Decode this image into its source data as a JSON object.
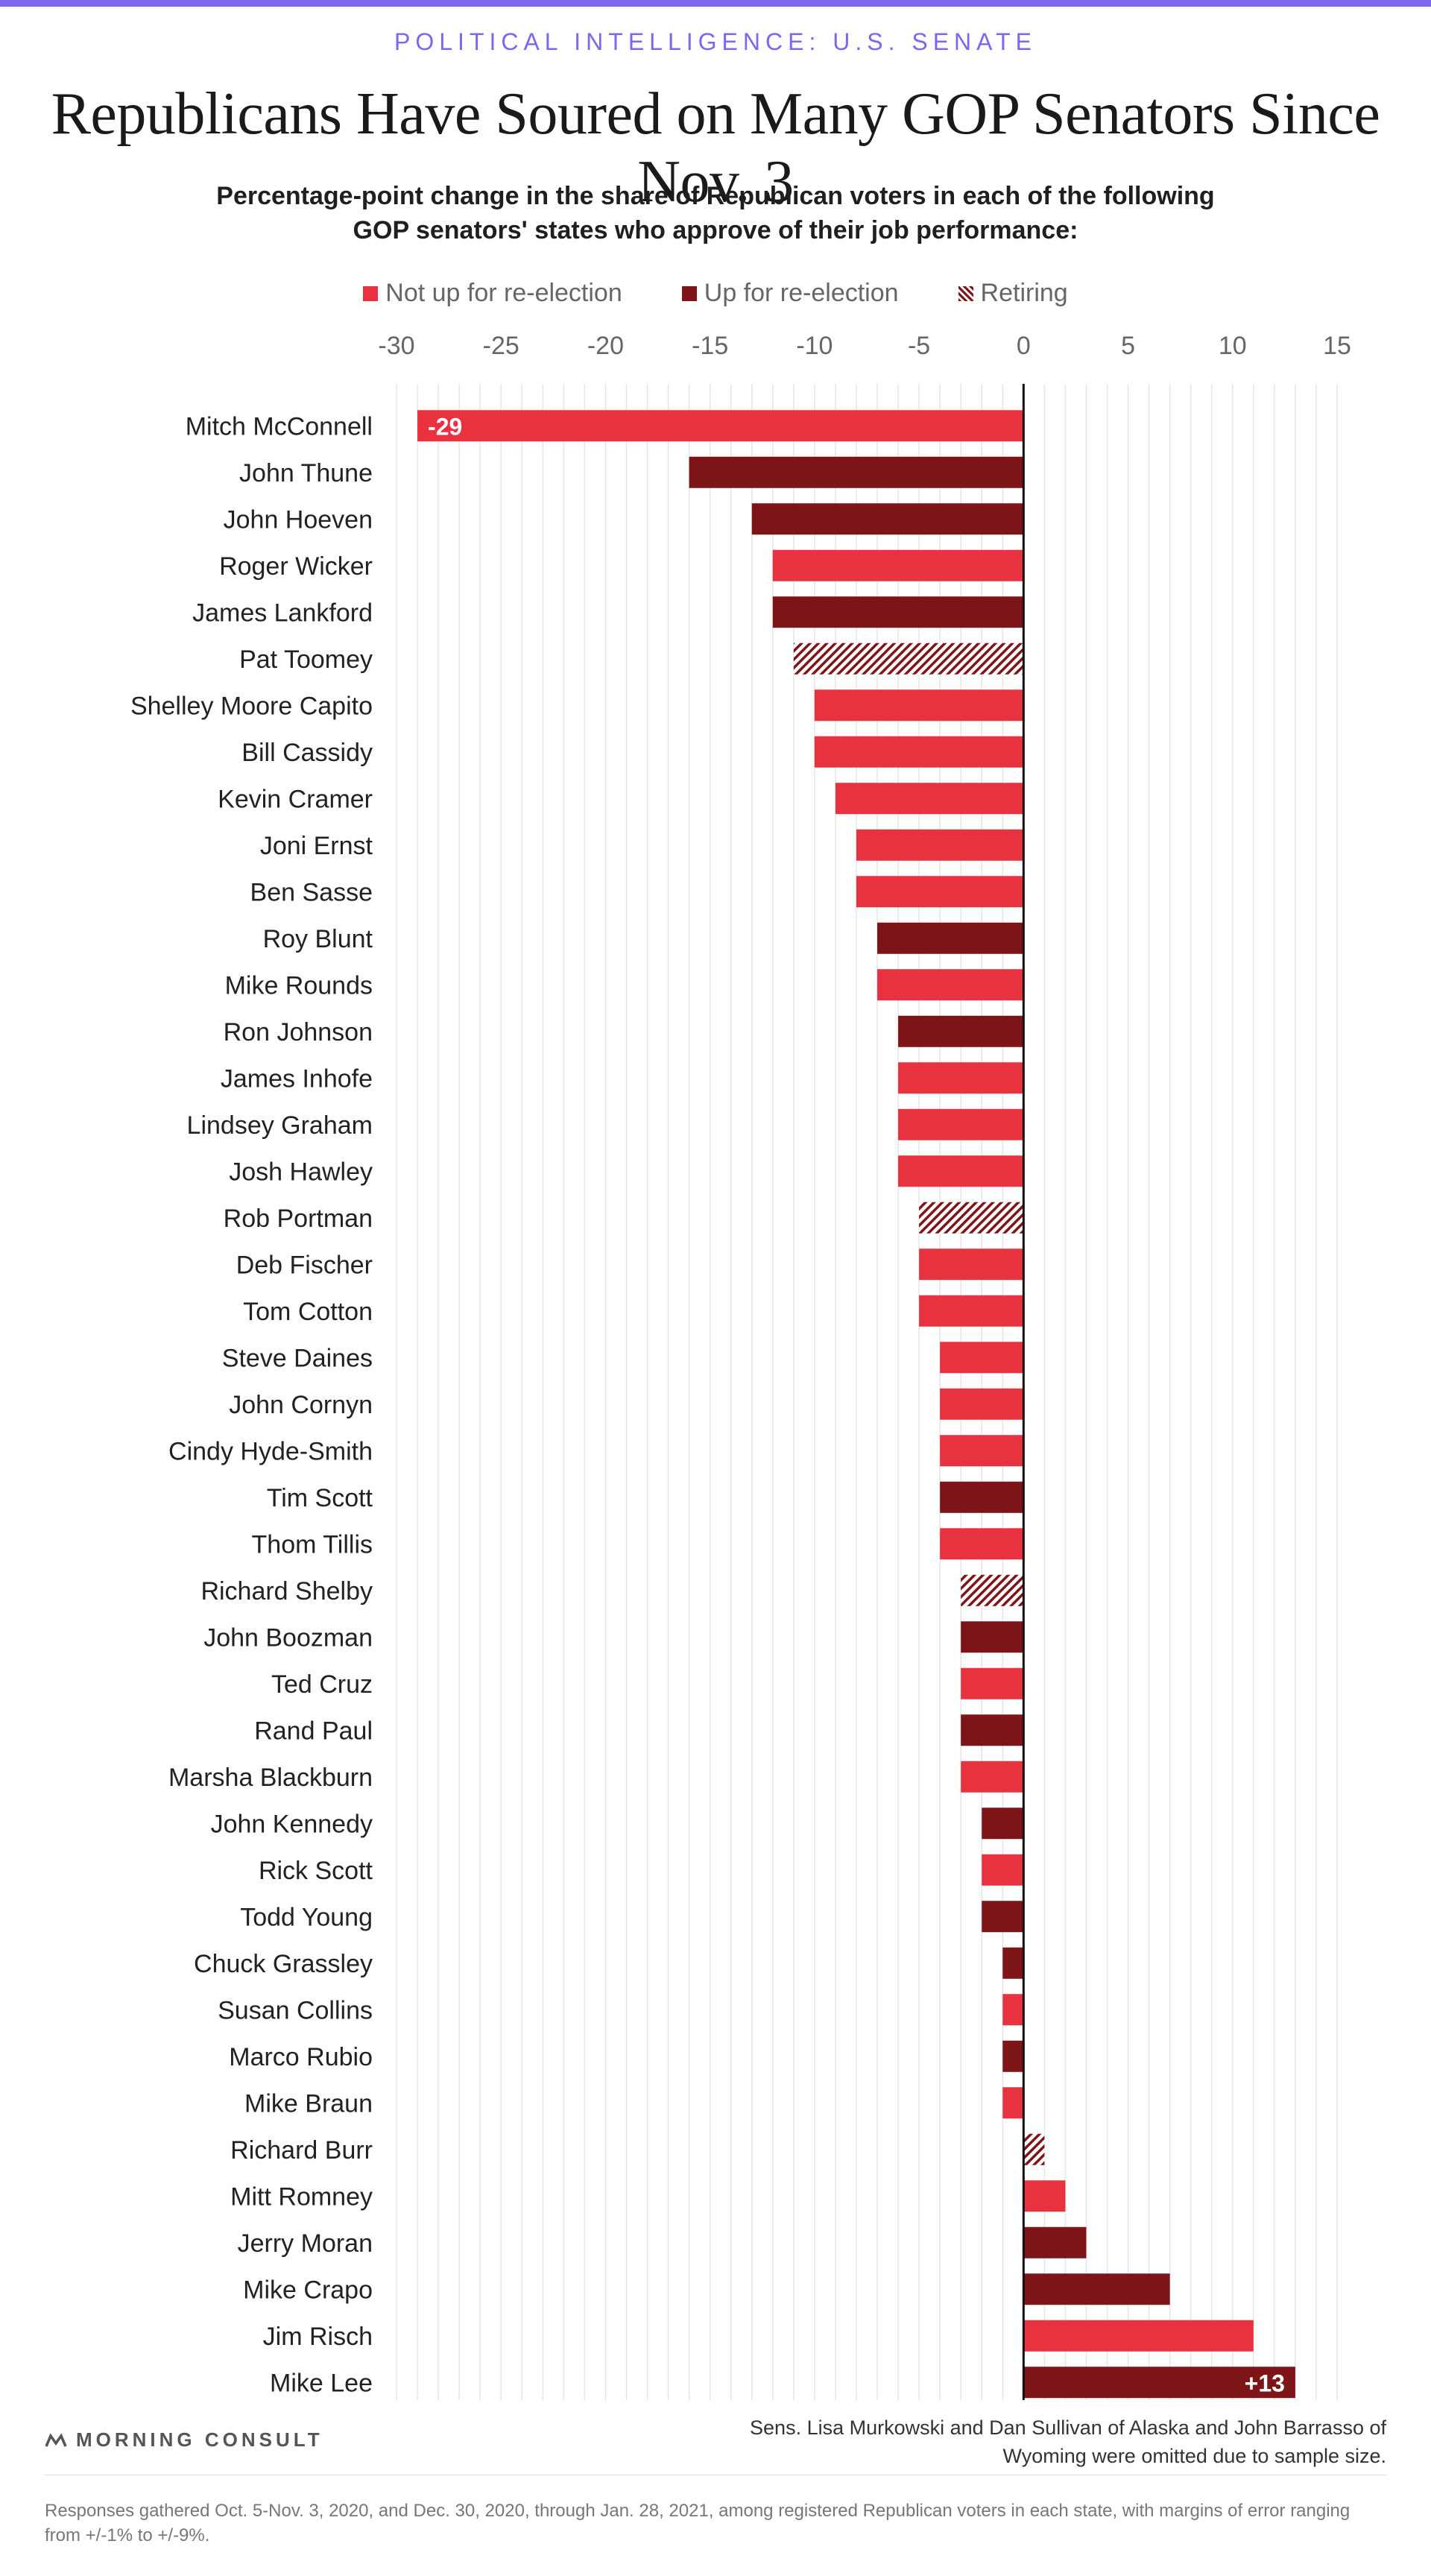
{
  "header": {
    "kicker": "POLITICAL INTELLIGENCE: U.S. SENATE",
    "title": "Republicans Have Soured on Many GOP Senators Since Nov. 3",
    "subtitle": "Percentage-point change in the share of Republican voters in each of the following GOP senators' states who approve of their job performance:"
  },
  "legend": {
    "not_up": "Not up for re-election",
    "up": "Up for re-election",
    "retiring": "Retiring"
  },
  "colors": {
    "not_up": "#e8323f",
    "up": "#7d1418",
    "retiring": "#7d1418",
    "accent": "#7b68ee"
  },
  "chart_data": {
    "type": "bar",
    "orientation": "horizontal",
    "xlim": [
      -30,
      15
    ],
    "ticks": [
      -30,
      -25,
      -20,
      -15,
      -10,
      -5,
      0,
      5,
      10,
      15
    ],
    "tick_labels": [
      "-30",
      "-25",
      "-20",
      "-15",
      "-10",
      "-5",
      "0",
      "5",
      "10",
      "15"
    ],
    "grid": true,
    "legend_position": "top-center",
    "series": [
      {
        "name": "Not up for re-election",
        "status": "not_up"
      },
      {
        "name": "Up for re-election",
        "status": "up"
      },
      {
        "name": "Retiring",
        "status": "retiring"
      }
    ],
    "categories": [
      "Mitch McConnell",
      "John Thune",
      "John Hoeven",
      "Roger Wicker",
      "James Lankford",
      "Pat Toomey",
      "Shelley Moore Capito",
      "Bill Cassidy",
      "Kevin Cramer",
      "Joni Ernst",
      "Ben Sasse",
      "Roy Blunt",
      "Mike Rounds",
      "Ron Johnson",
      "James Inhofe",
      "Lindsey Graham",
      "Josh Hawley",
      "Rob Portman",
      "Deb Fischer",
      "Tom Cotton",
      "Steve Daines",
      "John Cornyn",
      "Cindy Hyde-Smith",
      "Tim Scott",
      "Thom Tillis",
      "Richard Shelby",
      "John Boozman",
      "Ted Cruz",
      "Rand Paul",
      "Marsha Blackburn",
      "John Kennedy",
      "Rick Scott",
      "Todd Young",
      "Chuck Grassley",
      "Susan Collins",
      "Marco Rubio",
      "Mike Braun",
      "Richard Burr",
      "Mitt Romney",
      "Jerry Moran",
      "Mike Crapo",
      "Jim Risch",
      "Mike Lee"
    ],
    "values": [
      -29,
      -16,
      -13,
      -12,
      -12,
      -11,
      -10,
      -10,
      -9,
      -8,
      -8,
      -7,
      -7,
      -6,
      -6,
      -6,
      -6,
      -5,
      -5,
      -5,
      -4,
      -4,
      -4,
      -4,
      -4,
      -3,
      -3,
      -3,
      -3,
      -3,
      -2,
      -2,
      -2,
      -1,
      -1,
      -1,
      -1,
      1,
      2,
      3,
      7,
      11,
      13
    ],
    "status": [
      "not_up",
      "up",
      "up",
      "not_up",
      "up",
      "retiring",
      "not_up",
      "not_up",
      "not_up",
      "not_up",
      "not_up",
      "up",
      "not_up",
      "up",
      "not_up",
      "not_up",
      "not_up",
      "retiring",
      "not_up",
      "not_up",
      "not_up",
      "not_up",
      "not_up",
      "up",
      "not_up",
      "retiring",
      "up",
      "not_up",
      "up",
      "not_up",
      "up",
      "not_up",
      "up",
      "up",
      "not_up",
      "up",
      "not_up",
      "retiring",
      "not_up",
      "up",
      "up",
      "not_up",
      "up"
    ],
    "data_labels": [
      {
        "category": "Mitch McConnell",
        "text": "-29"
      },
      {
        "category": "Mike Lee",
        "text": "+13"
      }
    ]
  },
  "footer": {
    "brand": "MORNING CONSULT",
    "omitted_note": "Sens. Lisa Murkowski and Dan Sullivan of Alaska and John Barrasso of Wyoming were omitted due to sample size.",
    "sources": "Responses gathered Oct. 5-Nov. 3, 2020, and Dec. 30, 2020, through Jan. 28, 2021, among registered Republican voters in each state, with margins of error ranging from +/-1% to +/-9%."
  }
}
